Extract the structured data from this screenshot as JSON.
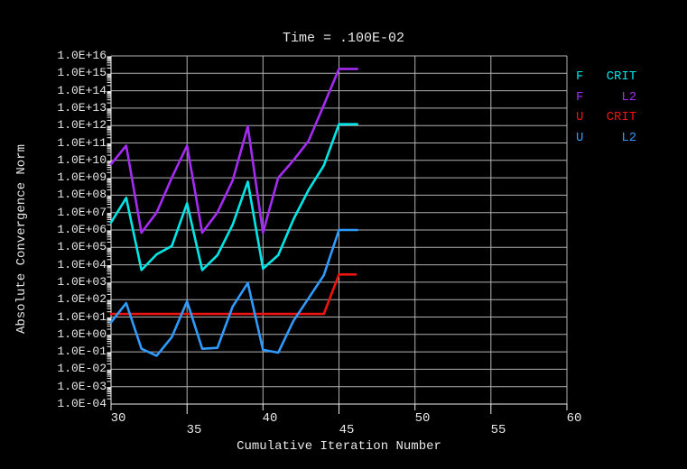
{
  "window": {
    "background": "#000000"
  },
  "title": "Time = .100E-02",
  "y_axis": {
    "title": "Absolute Convergence Norm",
    "tick_labels": [
      "1.0E+16",
      "1.0E+15",
      "1.0E+14",
      "1.0E+13",
      "1.0E+12",
      "1.0E+11",
      "1.0E+10",
      "1.0E+09",
      "1.0E+08",
      "1.0E+07",
      "1.0E+06",
      "1.0E+05",
      "1.0E+04",
      "1.0E+03",
      "1.0E+02",
      "1.0E+01",
      "1.0E+00",
      "1.0E-01",
      "1.0E-02",
      "1.0E-03",
      "1.0E-04"
    ]
  },
  "x_axis": {
    "title": "Cumulative Iteration Number",
    "ticks": [
      {
        "label": "30",
        "value": 30,
        "row": 0
      },
      {
        "label": "35",
        "value": 35,
        "row": 1
      },
      {
        "label": "40",
        "value": 40,
        "row": 0
      },
      {
        "label": "45",
        "value": 45,
        "row": 1
      },
      {
        "label": "50",
        "value": 50,
        "row": 0
      },
      {
        "label": "55",
        "value": 55,
        "row": 1
      },
      {
        "label": "60",
        "value": 60,
        "row": 0
      }
    ]
  },
  "legend": {
    "items": [
      {
        "label": "F   CRIT",
        "color": "#00e6e6"
      },
      {
        "label": "F     L2",
        "color": "#a32cf0"
      },
      {
        "label": "U   CRIT",
        "color": "#ee1511"
      },
      {
        "label": "U     L2",
        "color": "#2f9bff"
      }
    ]
  },
  "colors": {
    "grid": "#b2b2b2",
    "axis": "#f0f0f0",
    "text": "#e8e8e8",
    "background": "#000000"
  },
  "chart_data": {
    "type": "line",
    "title": "Time = .100E-02",
    "xlabel": "Cumulative Iteration Number",
    "ylabel": "Absolute Convergence Norm",
    "x_range": [
      30,
      60
    ],
    "y_scale": "log",
    "y_range": [
      0.0001,
      1e+16
    ],
    "grid": true,
    "legend_position": "right",
    "series": [
      {
        "name": "F CRIT",
        "color": "#00e6e6",
        "points": [
          [
            30,
            2700000.0
          ],
          [
            31,
            70000000.0
          ],
          [
            32,
            5000.0
          ],
          [
            33,
            40000.0
          ],
          [
            34,
            120000.0
          ],
          [
            35,
            34000000.0
          ],
          [
            36,
            5000.0
          ],
          [
            37,
            36000.0
          ],
          [
            38,
            2000000.0
          ],
          [
            39,
            600000000.0
          ],
          [
            40,
            6000.0
          ],
          [
            41,
            36000.0
          ],
          [
            42,
            4000000.0
          ],
          [
            43,
            200000000.0
          ],
          [
            44,
            5000000000.0
          ],
          [
            45,
            1200000000000.0
          ],
          [
            46.2,
            1200000000000.0
          ]
        ]
      },
      {
        "name": "F L2",
        "color": "#a32cf0",
        "points": [
          [
            30,
            6000000000.0
          ],
          [
            31,
            70000000000.0
          ],
          [
            32,
            700000.0
          ],
          [
            33,
            10000000.0
          ],
          [
            34,
            1000000000.0
          ],
          [
            35,
            70000000000.0
          ],
          [
            36,
            700000.0
          ],
          [
            37,
            10000000.0
          ],
          [
            38,
            700000000.0
          ],
          [
            39,
            900000000000.0
          ],
          [
            40,
            700000.0
          ],
          [
            41,
            1000000000.0
          ],
          [
            42,
            10000000000.0
          ],
          [
            43,
            130000000000.0
          ],
          [
            44,
            15000000000000.0
          ],
          [
            45,
            1800000000000000.0
          ],
          [
            46.2,
            1800000000000000.0
          ]
        ]
      },
      {
        "name": "U CRIT",
        "color": "#ee1511",
        "points": [
          [
            30,
            15.0
          ],
          [
            44,
            15.0
          ],
          [
            45,
            2800.0
          ],
          [
            46.1,
            2800.0
          ]
        ]
      },
      {
        "name": "U L2",
        "color": "#2f9bff",
        "points": [
          [
            30,
            5
          ],
          [
            31,
            63
          ],
          [
            32,
            0.15
          ],
          [
            33,
            0.06
          ],
          [
            34,
            0.7
          ],
          [
            35,
            80
          ],
          [
            36,
            0.15
          ],
          [
            37,
            0.17
          ],
          [
            38,
            40
          ],
          [
            39,
            900
          ],
          [
            40,
            0.13
          ],
          [
            41,
            0.09
          ],
          [
            42,
            6
          ],
          [
            43,
            120
          ],
          [
            44,
            2500.0
          ],
          [
            45,
            1000000.0
          ],
          [
            46.2,
            1000000.0
          ]
        ]
      }
    ]
  }
}
